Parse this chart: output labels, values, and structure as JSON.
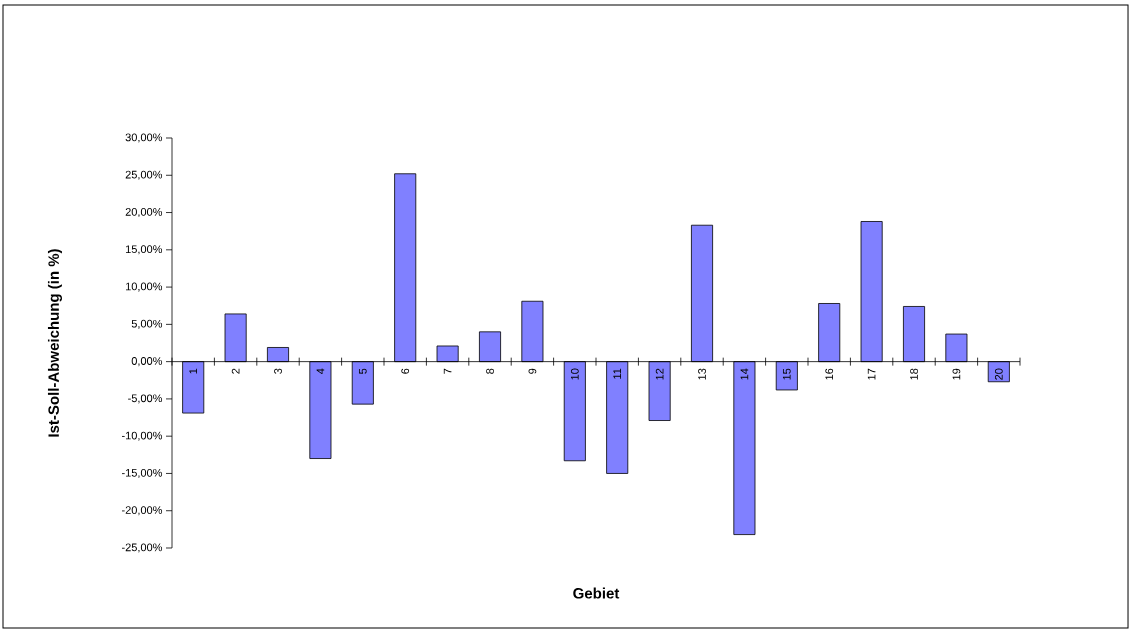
{
  "chart_data": {
    "type": "bar",
    "xlabel": "Gebiet",
    "ylabel": "Ist-Soll-Abweichung (in %)",
    "categories": [
      "1",
      "2",
      "3",
      "4",
      "5",
      "6",
      "7",
      "8",
      "9",
      "10",
      "11",
      "12",
      "13",
      "14",
      "15",
      "16",
      "17",
      "18",
      "19",
      "20"
    ],
    "values": [
      -6.9,
      6.4,
      1.9,
      -13.0,
      -5.7,
      25.2,
      2.1,
      4.0,
      8.1,
      -13.3,
      -15.0,
      -7.9,
      18.3,
      -23.2,
      -3.8,
      7.8,
      18.8,
      7.4,
      3.7,
      -2.7
    ],
    "color": "#8080ff",
    "ylim": [
      -25,
      30
    ],
    "yticks": [
      {
        "value": -25,
        "label": "-25,00%"
      },
      {
        "value": -20,
        "label": "-20,00%"
      },
      {
        "value": -15,
        "label": "-15,00%"
      },
      {
        "value": -10,
        "label": "-10,00%"
      },
      {
        "value": -5,
        "label": "-5,00%"
      },
      {
        "value": 0,
        "label": "0,00%"
      },
      {
        "value": 5,
        "label": "5,00%"
      },
      {
        "value": 10,
        "label": "10,00%"
      },
      {
        "value": 15,
        "label": "15,00%"
      },
      {
        "value": 20,
        "label": "20,00%"
      },
      {
        "value": 25,
        "label": "25,00%"
      },
      {
        "value": 30,
        "label": "30,00%"
      }
    ],
    "grid": false
  }
}
